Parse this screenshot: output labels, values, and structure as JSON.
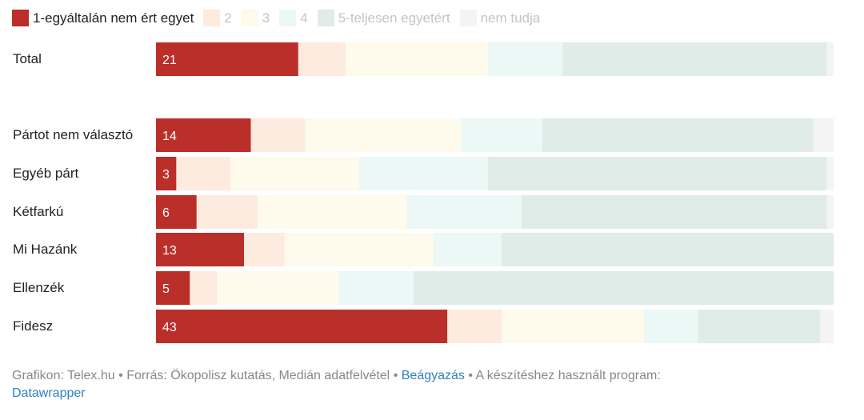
{
  "chart_data": {
    "type": "bar",
    "stacked": true,
    "normalized": true,
    "orientation": "horizontal",
    "legend_position": "top-left",
    "categories": [
      "Total",
      "Pártot nem választó",
      "Egyéb párt",
      "Kétfarkú",
      "Mi Hazánk",
      "Ellenzék",
      "Fidesz"
    ],
    "series": [
      {
        "name": "1-egyáltalán nem ért egyet",
        "color": "#bb2f2a",
        "values": [
          21,
          14,
          3,
          6,
          13,
          5,
          43
        ]
      },
      {
        "name": "2",
        "color": "#fdebdf",
        "values": [
          7,
          8,
          8,
          9,
          6,
          4,
          8
        ]
      },
      {
        "name": "3",
        "color": "#fefaec",
        "values": [
          21,
          23,
          19,
          22,
          22,
          18,
          21
        ]
      },
      {
        "name": "4",
        "color": "#ebf8f6",
        "values": [
          11,
          12,
          19,
          17,
          10,
          11,
          8
        ]
      },
      {
        "name": "5-teljesen egyetért",
        "color": "#dfece8",
        "values": [
          39,
          40,
          50,
          45,
          49,
          62,
          18
        ]
      },
      {
        "name": "nem tudja",
        "color": "#f4f4f4",
        "values": [
          1,
          3,
          1,
          1,
          0,
          0,
          2
        ]
      }
    ],
    "value_labels_series": 0
  },
  "footer": {
    "credit": "Grafikon: Telex.hu",
    "source": "Forrás: Ökopolisz kutatás, Medián adatfelvétel",
    "embed_link": "Beágyazás",
    "program_text": "A készítéshez használt program:",
    "program_link": "Datawrapper",
    "separator": "•"
  }
}
